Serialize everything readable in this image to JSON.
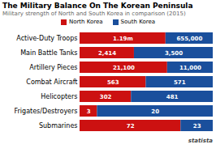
{
  "chart_data": {
    "type": "bar",
    "orientation": "horizontal",
    "stacked": true,
    "title": "The Military Balance On The Korean Peninsula",
    "subtitle": "Military strength of North and South Korea in comparison (2015)",
    "categories": [
      "Active-Duty Troops",
      "Main Battle Tanks",
      "Artillery Pieces",
      "Combat Aircraft",
      "Helicopters",
      "Frigates/Destroyers",
      "Submarines"
    ],
    "series": [
      {
        "name": "North Korea",
        "color": "#cc1111",
        "values": [
          1190000,
          2414,
          21100,
          563,
          302,
          3,
          72
        ],
        "value_labels": [
          "1.19m",
          "2,414",
          "21,100",
          "563",
          "302",
          "3",
          "72"
        ]
      },
      {
        "name": "South Korea",
        "color": "#1a4f9c",
        "values": [
          655000,
          3500,
          11000,
          571,
          481,
          20,
          23
        ],
        "value_labels": [
          "655,000",
          "3,500",
          "11,000",
          "571",
          "481",
          "20",
          "23"
        ]
      }
    ],
    "data_labels": true,
    "legend": "top",
    "grid": false,
    "tick_labels": "y",
    "annotations": [
      "statista"
    ]
  }
}
